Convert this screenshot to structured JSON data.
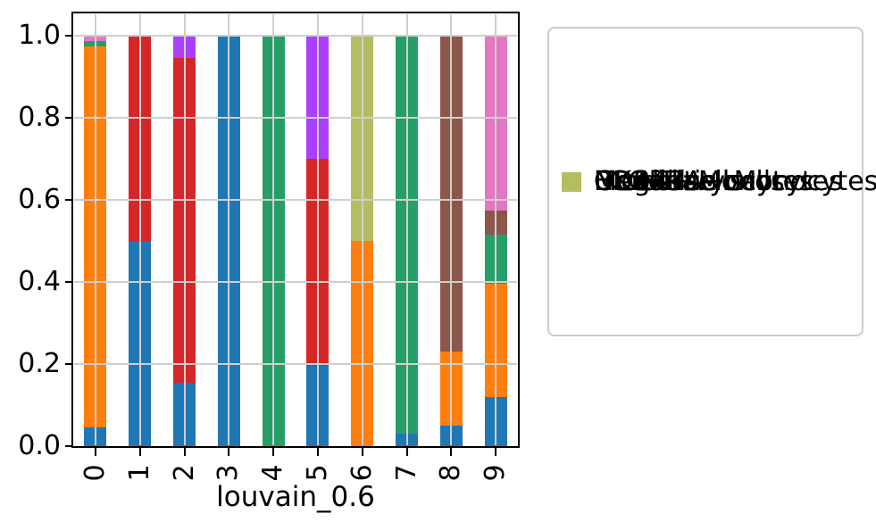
{
  "chart_data": {
    "type": "bar",
    "stacked": true,
    "title": "",
    "xlabel": "louvain_0.6",
    "ylabel": "",
    "categories": [
      "0",
      "1",
      "2",
      "3",
      "4",
      "5",
      "6",
      "7",
      "8",
      "9"
    ],
    "yticks": [
      0.0,
      0.2,
      0.4,
      0.6,
      0.8,
      1.0
    ],
    "ylim": [
      0,
      1.05
    ],
    "grid": true,
    "grid_color": "#cfcfcf",
    "axis_color": "#000000",
    "legend_position": "right",
    "series": [
      {
        "name": "CD4 T cells",
        "color": "#1f77b4",
        "values": [
          0.045,
          0.5,
          0.155,
          1.0,
          0,
          0.195,
          0,
          0.03,
          0.05,
          0.12
        ]
      },
      {
        "name": "CD14+ Monocytes",
        "color": "#ff7f0e",
        "values": [
          0.93,
          0,
          0,
          0,
          0,
          0,
          0.5,
          0,
          0.18,
          0.275
        ]
      },
      {
        "name": "B cells",
        "color": "#279e68",
        "values": [
          0.012,
          0,
          0,
          0,
          1.0,
          0,
          0,
          0.97,
          0,
          0.12
        ]
      },
      {
        "name": "CD8 T cells",
        "color": "#d62728",
        "values": [
          0,
          0.5,
          0.79,
          0,
          0,
          0.505,
          0,
          0,
          0,
          0
        ]
      },
      {
        "name": "NK cells",
        "color": "#aa40fc",
        "values": [
          0,
          0,
          0.055,
          0,
          0,
          0.3,
          0,
          0,
          0,
          0
        ]
      },
      {
        "name": "FCGR3A+ Monocytes",
        "color": "#8c564b",
        "values": [
          0,
          0,
          0,
          0,
          0,
          0,
          0,
          0,
          0.77,
          0.06
        ]
      },
      {
        "name": "Dendritic cells",
        "color": "#e377c2",
        "values": [
          0.013,
          0,
          0,
          0,
          0,
          0,
          0,
          0,
          0,
          0.425
        ]
      },
      {
        "name": "Megakaryocytes",
        "color": "#b5bd61",
        "values": [
          0,
          0,
          0,
          0,
          0,
          0,
          0.5,
          0,
          0,
          0
        ]
      }
    ]
  }
}
